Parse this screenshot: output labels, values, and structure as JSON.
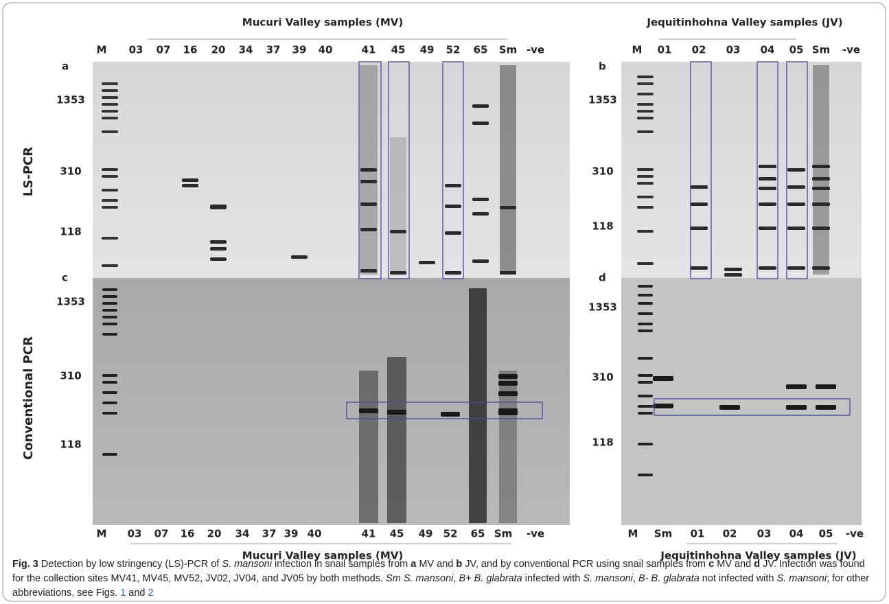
{
  "mv_header": "Mucuri Valley samples (MV)",
  "jv_header": "Jequitinhohna Valley samples (JV)",
  "top_lanes_mv": [
    "M",
    "03",
    "07",
    "16",
    "20",
    "34",
    "37",
    "39",
    "40",
    "41",
    "45",
    "49",
    "52",
    "65",
    "Sm",
    "-ve"
  ],
  "top_lanes_jv": [
    "M",
    "01",
    "02",
    "03",
    "04",
    "05",
    "Sm",
    "-ve"
  ],
  "bottom_lanes_mv": [
    "M",
    "03",
    "07",
    "16",
    "20",
    "34",
    "37",
    "39",
    "40",
    "41",
    "45",
    "49",
    "52",
    "65",
    "Sm",
    "-ve"
  ],
  "bottom_lanes_jv": [
    "M",
    "Sm",
    "01",
    "02",
    "03",
    "04",
    "05",
    "-ve"
  ],
  "panels": {
    "a": "a",
    "b": "b",
    "c": "c",
    "d": "d"
  },
  "row_labels": {
    "top": "LS-PCR",
    "bottom": "Conventional PCR"
  },
  "markers": {
    "a": [
      "1353",
      "310",
      "118"
    ],
    "b": [
      "1353",
      "310",
      "118"
    ],
    "c": [
      "1353",
      "310",
      "118"
    ],
    "d": [
      "1353",
      "310",
      "118"
    ]
  },
  "caption": {
    "parts": [
      "Fig. 3",
      " Detection by low stringency (LS)-PCR of ",
      "S. mansoni",
      " infection in snail samples from ",
      "a",
      " MV and ",
      "b",
      " JV, and by conventional PCR using snail samples from ",
      "c",
      " MV and ",
      "d",
      " JV. Infection was found for the collection sites MV41, MV45, MV52, JV02, JV04, and JV05 by both methods. ",
      "Sm S. mansoni",
      ", ",
      "B+ B. glabrata",
      " infected with ",
      "S. mansoni",
      ", ",
      "B- B. glabrata",
      " not infected with ",
      "S. mansoni",
      "; for other abbreviations, see Figs. ",
      "1",
      " and ",
      "2"
    ]
  }
}
